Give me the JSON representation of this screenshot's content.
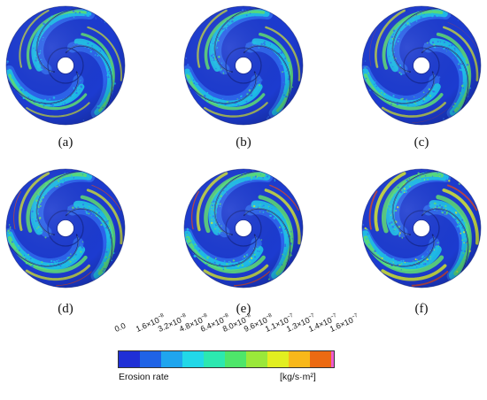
{
  "panels": [
    {
      "label": "(a)",
      "intensity": 0.3
    },
    {
      "label": "(b)",
      "intensity": 0.38
    },
    {
      "label": "(c)",
      "intensity": 0.46
    },
    {
      "label": "(d)",
      "intensity": 0.56
    },
    {
      "label": "(e)",
      "intensity": 0.66
    },
    {
      "label": "(f)",
      "intensity": 0.78
    }
  ],
  "colorbar": {
    "title": "Erosion rate",
    "units": "[kg/s·m²]",
    "ticks": [
      {
        "mantissa": "0.0",
        "exp": ""
      },
      {
        "mantissa": "1.6×10",
        "exp": "−8"
      },
      {
        "mantissa": "3.2×10",
        "exp": "−8"
      },
      {
        "mantissa": "4.8×10",
        "exp": "−8"
      },
      {
        "mantissa": "6.4×10",
        "exp": "−8"
      },
      {
        "mantissa": "8.0×10",
        "exp": "−8"
      },
      {
        "mantissa": "9.6×10",
        "exp": "−8"
      },
      {
        "mantissa": "1.1×10",
        "exp": "−7"
      },
      {
        "mantissa": "1.3×10",
        "exp": "−7"
      },
      {
        "mantissa": "1.4×10",
        "exp": "−7"
      },
      {
        "mantissa": "1.6×10",
        "exp": "−7"
      }
    ],
    "colors": [
      "#1f2fd6",
      "#1f63e6",
      "#1fa5ee",
      "#22d8e8",
      "#2ce8b0",
      "#4ee66a",
      "#9ae83a",
      "#e2ee20",
      "#f8b81a",
      "#ec6a12"
    ],
    "end_color": "#f05ad0"
  },
  "impeller_colors": {
    "background": "#1c3bd0",
    "light": "#2f6cf0",
    "cyan": "#1ec4e8",
    "green": "#5fe070",
    "yellow": "#d8e830",
    "red": "#e84a1a"
  }
}
